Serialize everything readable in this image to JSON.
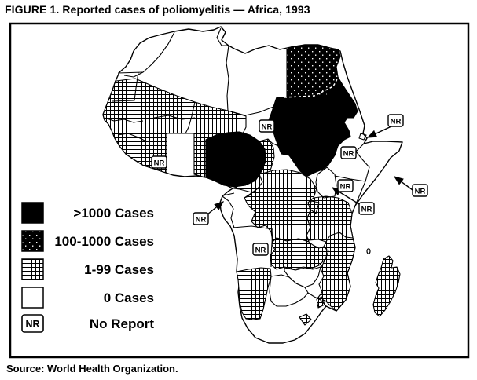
{
  "figure": {
    "title": "FIGURE 1. Reported cases of poliomyelitis — Africa, 1993",
    "source": "Source: World Health Organization."
  },
  "legend": {
    "nr_symbol": "NR",
    "items": [
      {
        "id": "gt1000",
        "label": ">1000 Cases"
      },
      {
        "id": "c100_1000",
        "label": "100-1000 Cases"
      },
      {
        "id": "c1_99",
        "label": "1-99 Cases"
      },
      {
        "id": "c0",
        "label": "0 Cases"
      },
      {
        "id": "nr",
        "label": "No Report"
      }
    ]
  },
  "map": {
    "nr_symbol": "NR",
    "no_report_boxes": [
      "chad",
      "ghana",
      "equatorial-guinea",
      "angola",
      "uganda",
      "kenya",
      "ethiopia",
      "djibouti",
      "somalia"
    ],
    "countries": [
      {
        "id": "nigeria",
        "name": "Nigeria",
        "category": "gt1000"
      },
      {
        "id": "sudan",
        "name": "Sudan",
        "category": "gt1000"
      },
      {
        "id": "egypt",
        "name": "Egypt",
        "category": "c100_1000"
      },
      {
        "id": "west-africa-group",
        "name": "Mauritania, Senegal, Gambia, Guinea-Bissau, Guinea, Sierra Leone, Liberia, Côte d'Ivoire, Mali, Burkina Faso, Niger, Togo, Benin",
        "category": "c1_99"
      },
      {
        "id": "cameroon",
        "name": "Cameroon",
        "category": "c1_99"
      },
      {
        "id": "zaire",
        "name": "Zaire",
        "category": "c1_99"
      },
      {
        "id": "tanzania",
        "name": "Tanzania",
        "category": "c1_99"
      },
      {
        "id": "zambia",
        "name": "Zambia",
        "category": "c1_99"
      },
      {
        "id": "malawi-mozambique",
        "name": "Malawi, Mozambique",
        "category": "c1_99"
      },
      {
        "id": "namibia",
        "name": "Namibia",
        "category": "c1_99"
      },
      {
        "id": "lesotho",
        "name": "Lesotho",
        "category": "c1_99"
      },
      {
        "id": "swaziland",
        "name": "Swaziland",
        "category": "c1_99"
      },
      {
        "id": "madagascar",
        "name": "Madagascar",
        "category": "c1_99"
      },
      {
        "id": "morocco",
        "name": "Morocco",
        "category": "c0"
      },
      {
        "id": "algeria",
        "name": "Algeria",
        "category": "c0"
      },
      {
        "id": "tunisia",
        "name": "Tunisia",
        "category": "c0"
      },
      {
        "id": "libya",
        "name": "Libya",
        "category": "c0"
      },
      {
        "id": "western-sahara",
        "name": "Western Sahara",
        "category": "c0"
      },
      {
        "id": "central-african-republic",
        "name": "Central African Republic",
        "category": "c0"
      },
      {
        "id": "gabon-congo",
        "name": "Gabon, Congo",
        "category": "c0"
      },
      {
        "id": "rwanda-burundi",
        "name": "Rwanda, Burundi",
        "category": "c0"
      },
      {
        "id": "zimbabwe",
        "name": "Zimbabwe",
        "category": "c0"
      },
      {
        "id": "botswana",
        "name": "Botswana",
        "category": "c0"
      },
      {
        "id": "south-africa",
        "name": "South Africa",
        "category": "c0"
      },
      {
        "id": "chad",
        "name": "Chad",
        "category": "nr"
      },
      {
        "id": "ghana",
        "name": "Ghana",
        "category": "nr"
      },
      {
        "id": "equatorial-guinea",
        "name": "Equatorial Guinea",
        "category": "nr"
      },
      {
        "id": "angola",
        "name": "Angola",
        "category": "nr"
      },
      {
        "id": "uganda",
        "name": "Uganda",
        "category": "nr"
      },
      {
        "id": "kenya",
        "name": "Kenya",
        "category": "nr"
      },
      {
        "id": "ethiopia",
        "name": "Ethiopia",
        "category": "nr"
      },
      {
        "id": "djibouti",
        "name": "Djibouti",
        "category": "nr"
      },
      {
        "id": "somalia",
        "name": "Somalia",
        "category": "nr"
      }
    ]
  }
}
